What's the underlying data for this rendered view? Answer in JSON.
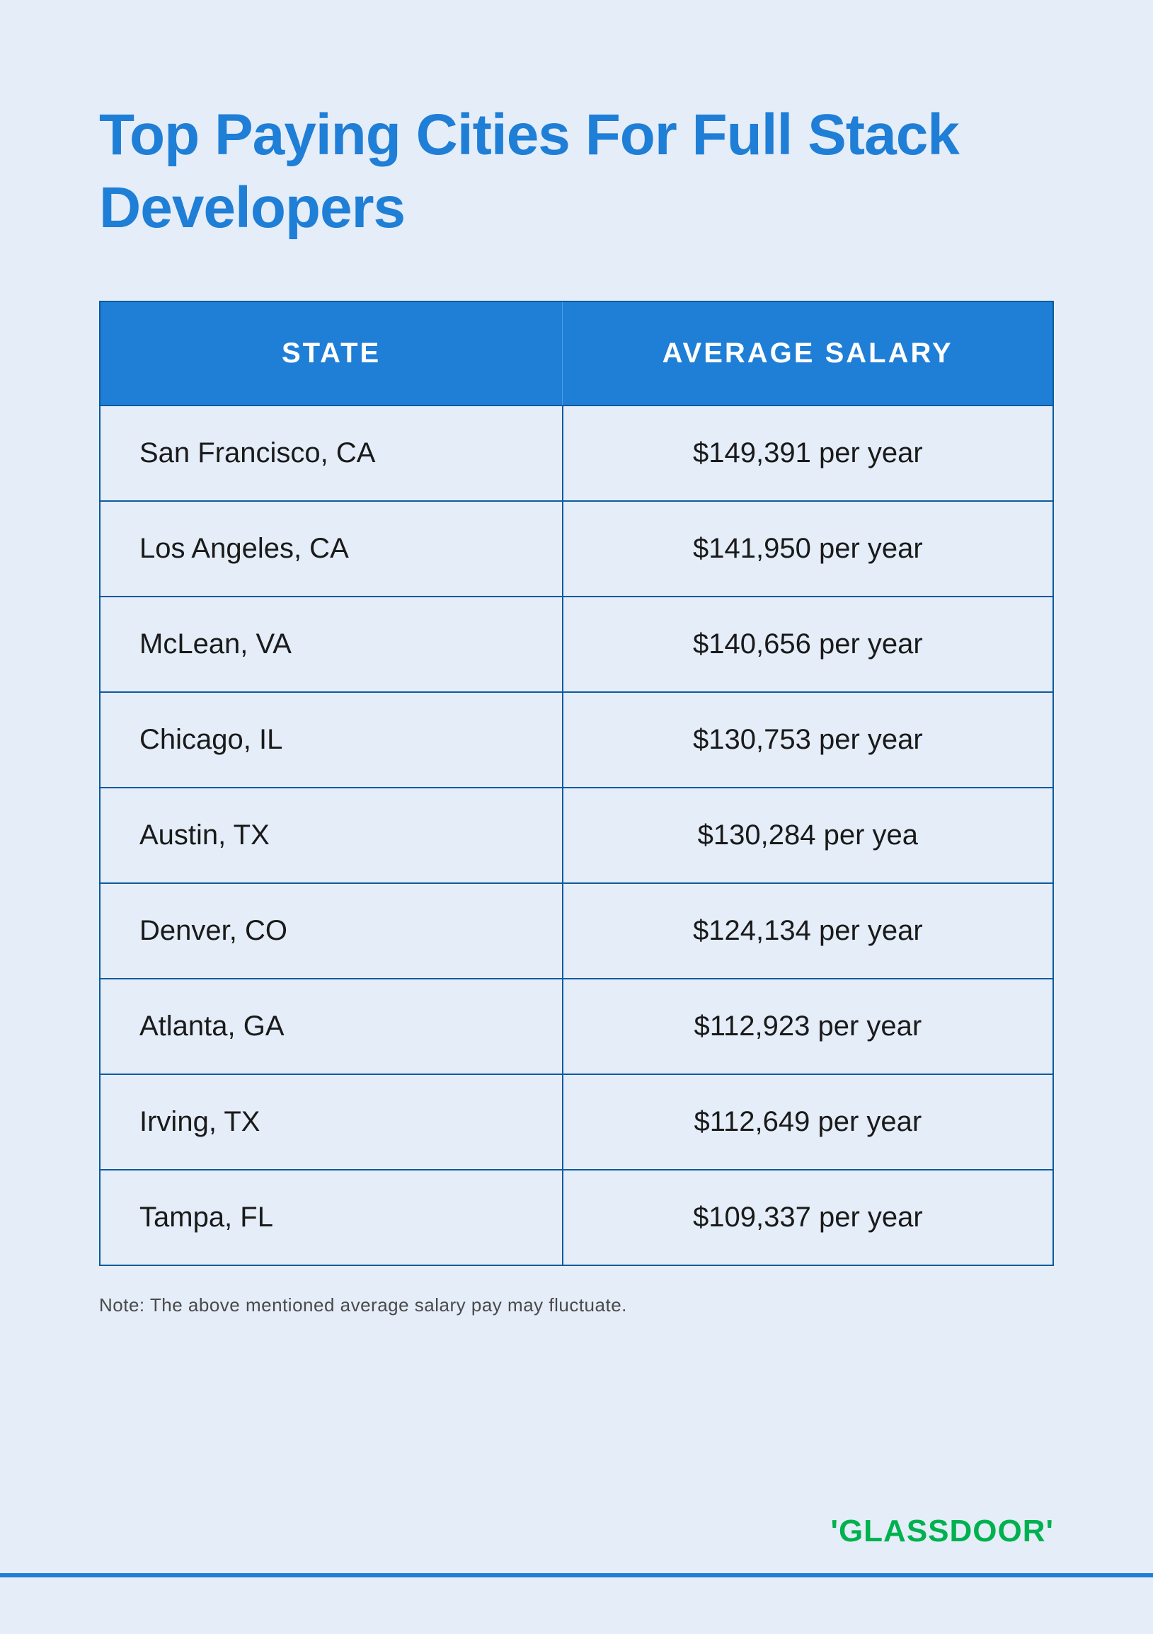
{
  "title": "Top Paying Cities For Full Stack Developers",
  "table": {
    "type": "table",
    "header_bg": "#1f7ed6",
    "header_text_color": "#ffffff",
    "border_color": "#0e5a9e",
    "cell_bg": "#e4edf8",
    "text_color": "#1a1a1a",
    "header_fontsize": 40,
    "cell_fontsize": 40,
    "columns": [
      "STATE",
      "AVERAGE SALARY"
    ],
    "rows": [
      {
        "state": "San Francisco, CA",
        "salary": "$149,391 per year"
      },
      {
        "state": "Los Angeles, CA",
        "salary": "$141,950 per year"
      },
      {
        "state": "McLean, VA",
        "salary": "$140,656 per year"
      },
      {
        "state": "Chicago, IL",
        "salary": "$130,753 per year"
      },
      {
        "state": "Austin, TX",
        "salary": "$130,284 per yea"
      },
      {
        "state": "Denver, CO",
        "salary": "$124,134 per year"
      },
      {
        "state": "Atlanta, GA",
        "salary": "$112,923 per year"
      },
      {
        "state": "Irving, TX",
        "salary": "$112,649 per year"
      },
      {
        "state": "Tampa, FL",
        "salary": "$109,337 per year"
      }
    ]
  },
  "note": "Note: The above mentioned average salary pay may fluctuate.",
  "logo": {
    "text": "GLASSDOOR",
    "color": "#00b14f"
  },
  "colors": {
    "background": "#e4edf8",
    "title": "#1f7ed6",
    "accent_line": "#1f7ed6"
  }
}
